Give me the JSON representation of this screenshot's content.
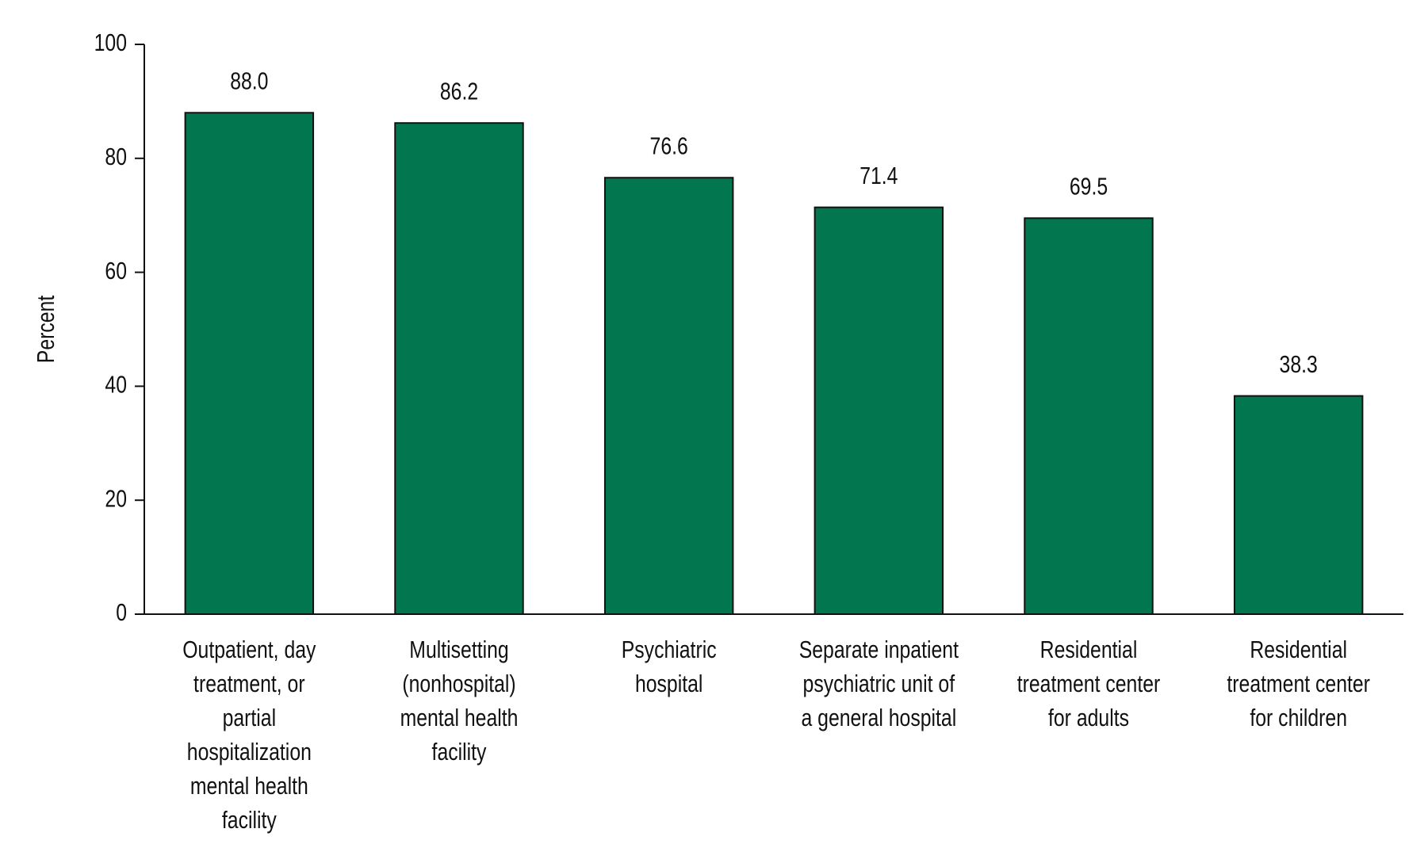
{
  "chart_data": {
    "type": "bar",
    "y_label": "Percent",
    "categories": [
      [
        "Outpatient, day",
        "treatment, or",
        "partial",
        "hospitalization",
        "mental health",
        "facility"
      ],
      [
        "Multisetting",
        "(nonhospital)",
        "mental health",
        "facility"
      ],
      [
        "Psychiatric",
        "hospital"
      ],
      [
        "Separate inpatient",
        "psychiatric unit of",
        "a general hospital"
      ],
      [
        "Residential",
        "treatment center",
        "for adults"
      ],
      [
        "Residential",
        "treatment center",
        "for children"
      ]
    ],
    "values": [
      88.0,
      86.2,
      76.6,
      71.4,
      69.5,
      38.3
    ],
    "value_labels": [
      "88.0",
      "86.2",
      "76.6",
      "71.4",
      "69.5",
      "38.3"
    ],
    "color": "#02774f",
    "ylim": [
      0,
      100
    ],
    "yticks": [
      0,
      20,
      40,
      60,
      80,
      100
    ],
    "grid": false
  }
}
